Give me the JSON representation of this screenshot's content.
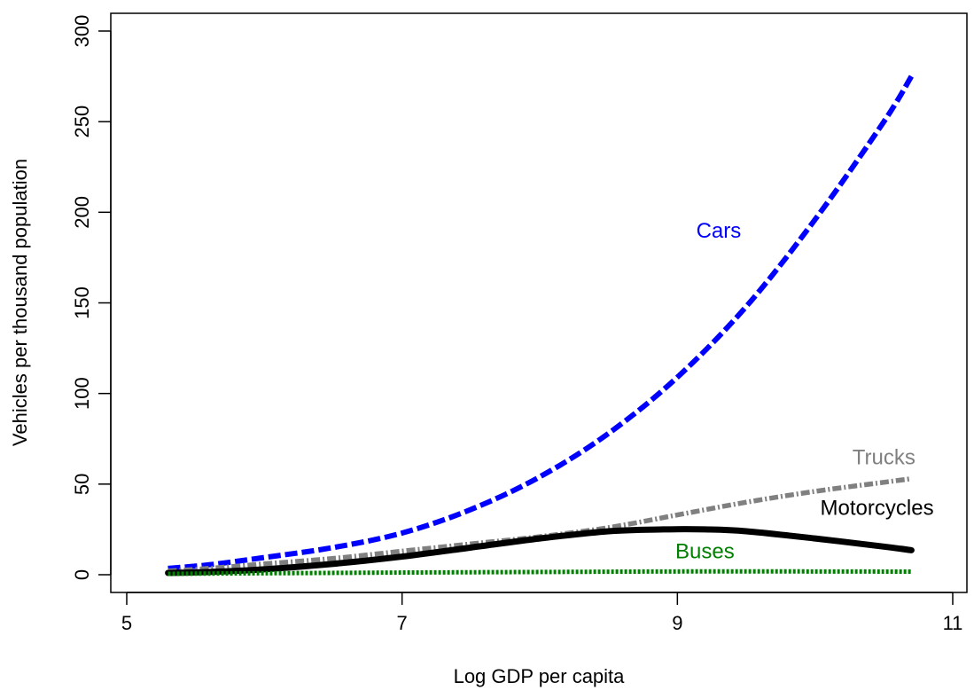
{
  "chart_data": {
    "type": "line",
    "title": "",
    "xlabel": "Log GDP per capita",
    "ylabel": "Vehicles per thousand population",
    "xlim": [
      5,
      11
    ],
    "ylim": [
      0,
      300
    ],
    "xticks": [
      5,
      7,
      9,
      11
    ],
    "yticks": [
      0,
      50,
      100,
      150,
      200,
      250,
      300
    ],
    "grid": false,
    "legend": "none",
    "series": [
      {
        "name": "Cars",
        "color": "#0000ff",
        "style": "dashed",
        "x": [
          5.3,
          5.6,
          6.0,
          6.5,
          7.0,
          7.5,
          8.0,
          8.5,
          9.0,
          9.5,
          10.0,
          10.5,
          10.7
        ],
        "y": [
          3.5,
          5.5,
          9.5,
          15,
          23,
          36,
          54,
          78,
          109,
          148,
          196,
          250,
          275
        ]
      },
      {
        "name": "Trucks",
        "color": "#808080",
        "style": "dashdot",
        "x": [
          5.3,
          5.6,
          6.0,
          6.5,
          7.0,
          7.5,
          8.0,
          8.5,
          9.0,
          9.5,
          10.0,
          10.5,
          10.7
        ],
        "y": [
          2,
          3.5,
          6,
          9,
          13,
          17,
          21,
          26,
          33,
          40,
          46,
          51,
          53
        ]
      },
      {
        "name": "Motorcycles",
        "color": "#000000",
        "style": "solid",
        "x": [
          5.3,
          5.6,
          6.0,
          6.5,
          7.0,
          7.5,
          8.0,
          8.5,
          8.9,
          9.2,
          9.5,
          10.0,
          10.5,
          10.7
        ],
        "y": [
          1,
          1.5,
          3,
          6,
          10,
          15,
          20,
          24,
          25,
          25,
          24,
          20,
          15.5,
          13.5
        ]
      },
      {
        "name": "Buses",
        "color": "#008000",
        "style": "dotted",
        "x": [
          5.3,
          6.0,
          7.0,
          8.0,
          9.0,
          10.0,
          10.7
        ],
        "y": [
          0.5,
          0.8,
          1.2,
          1.5,
          1.8,
          1.8,
          1.7
        ]
      }
    ],
    "annotations": [
      {
        "text": "Cars",
        "x": 9.3,
        "y": 186,
        "color": "#0000ff"
      },
      {
        "text": "Trucks",
        "x": 10.5,
        "y": 61,
        "color": "#808080"
      },
      {
        "text": "Motorcycles",
        "x": 10.45,
        "y": 33,
        "color": "#000000"
      },
      {
        "text": "Buses",
        "x": 9.2,
        "y": 9,
        "color": "#008000"
      }
    ]
  }
}
